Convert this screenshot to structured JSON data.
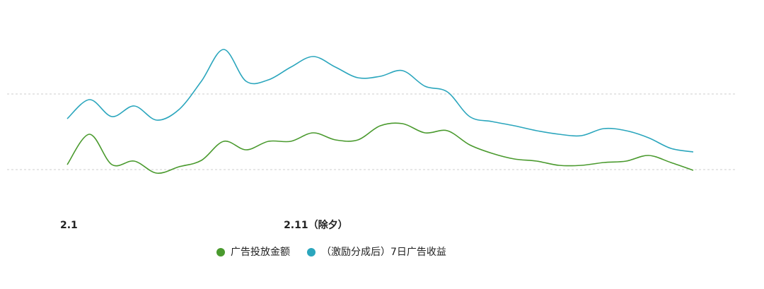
{
  "chart_data": {
    "type": "line",
    "categories": [
      "2.1",
      null,
      null,
      null,
      null,
      null,
      null,
      null,
      null,
      null,
      "2.11（除夕）",
      null,
      null,
      null,
      null,
      null,
      null,
      null,
      null,
      null,
      null,
      null,
      null,
      null,
      null,
      null,
      null,
      null,
      null
    ],
    "series": [
      {
        "name": "广告投放金额",
        "color": "#4a9a2e",
        "values": [
          67,
          110,
          67,
          72,
          55,
          64,
          73,
          100,
          88,
          100,
          100,
          112,
          102,
          102,
          122,
          125,
          112,
          115,
          95,
          83,
          75,
          72,
          66,
          66,
          70,
          72,
          80,
          70,
          59
        ]
      },
      {
        "name": "（激励分成后）7日广告收益",
        "color": "#2ba6bd",
        "values": [
          132,
          159,
          135,
          150,
          130,
          145,
          185,
          230,
          185,
          187,
          205,
          220,
          205,
          190,
          192,
          200,
          178,
          170,
          135,
          128,
          122,
          115,
          110,
          108,
          118,
          115,
          105,
          90,
          85
        ]
      }
    ],
    "ylim": [
      0,
      300
    ]
  }
}
